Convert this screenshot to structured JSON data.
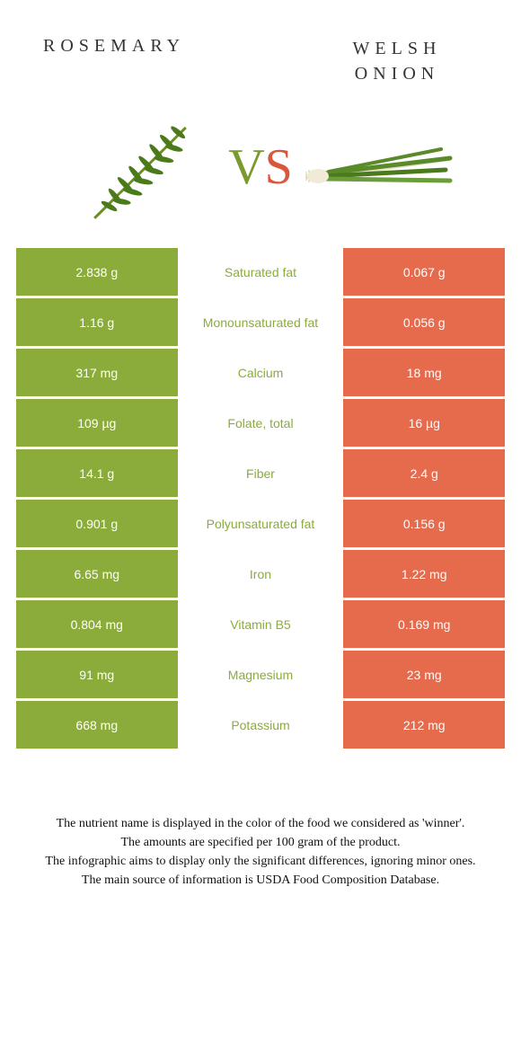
{
  "titles": {
    "left": "ROSEMARY",
    "right": "WELSH ONION"
  },
  "vs": {
    "v": "V",
    "s": "S"
  },
  "colors": {
    "left": "#8bac3a",
    "right": "#e66a4c",
    "left_label": "#8bac3a",
    "right_label": "#e66a4c",
    "bg": "#ffffff"
  },
  "rows": [
    {
      "label": "Saturated fat",
      "left": "2.838 g",
      "right": "0.067 g",
      "winner": "left"
    },
    {
      "label": "Monounsaturated fat",
      "left": "1.16 g",
      "right": "0.056 g",
      "winner": "left"
    },
    {
      "label": "Calcium",
      "left": "317 mg",
      "right": "18 mg",
      "winner": "left"
    },
    {
      "label": "Folate, total",
      "left": "109 µg",
      "right": "16 µg",
      "winner": "left"
    },
    {
      "label": "Fiber",
      "left": "14.1 g",
      "right": "2.4 g",
      "winner": "left"
    },
    {
      "label": "Polyunsaturated fat",
      "left": "0.901 g",
      "right": "0.156 g",
      "winner": "left"
    },
    {
      "label": "Iron",
      "left": "6.65 mg",
      "right": "1.22 mg",
      "winner": "left"
    },
    {
      "label": "Vitamin B5",
      "left": "0.804 mg",
      "right": "0.169 mg",
      "winner": "left"
    },
    {
      "label": "Magnesium",
      "left": "91 mg",
      "right": "23 mg",
      "winner": "left"
    },
    {
      "label": "Potassium",
      "left": "668 mg",
      "right": "212 mg",
      "winner": "left"
    }
  ],
  "footer": {
    "line1": "The nutrient name is displayed in the color of the food we considered as 'winner'.",
    "line2": "The amounts are specified per 100 gram of the product.",
    "line3": "The infographic aims to display only the significant differences, ignoring minor ones.",
    "line4": "The main source of information is USDA Food Composition Database."
  }
}
